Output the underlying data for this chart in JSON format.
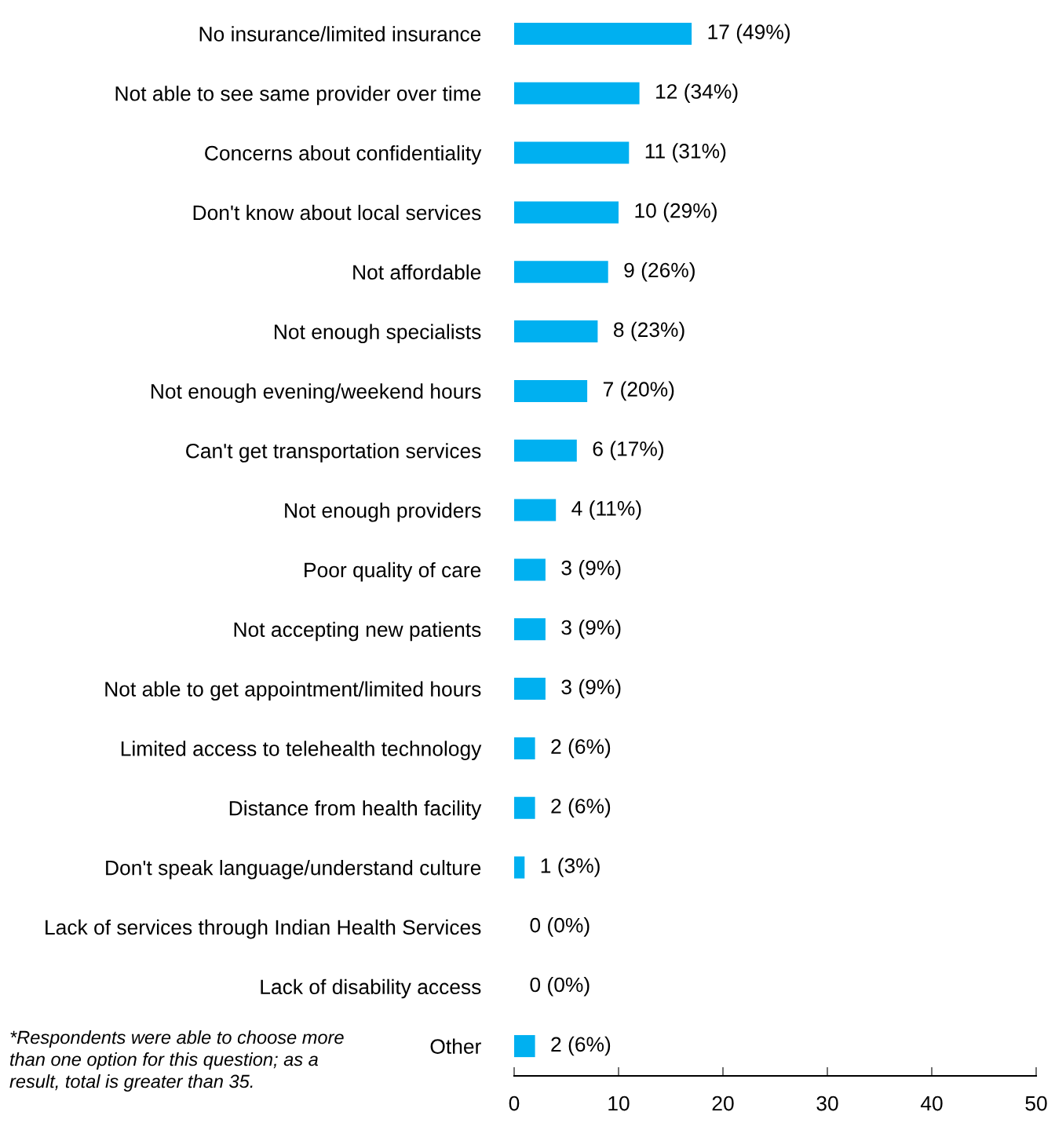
{
  "chart_data": {
    "type": "bar",
    "orientation": "horizontal",
    "categories": [
      "No insurance/limited insurance",
      "Not able to see same provider over time",
      "Concerns about confidentiality",
      "Don't know about local services",
      "Not affordable",
      "Not enough specialists",
      "Not enough evening/weekend hours",
      "Can't get transportation services",
      "Not enough providers",
      "Poor quality of care",
      "Not accepting new patients",
      "Not able to get appointment/limited hours",
      "Limited access to telehealth technology",
      "Distance from health facility",
      "Don't speak language/understand culture",
      "Lack of services through Indian Health Services",
      "Lack of disability access",
      "Other"
    ],
    "values": [
      17,
      12,
      11,
      10,
      9,
      8,
      7,
      6,
      4,
      3,
      3,
      3,
      2,
      2,
      1,
      0,
      0,
      2
    ],
    "value_labels": [
      "17 (49%)",
      "12 (34%)",
      "11 (31%)",
      "10 (29%)",
      "9 (26%)",
      "8 (23%)",
      "7 (20%)",
      "6 (17%)",
      "4 (11%)",
      "3 (9%)",
      "3 (9%)",
      "3 (9%)",
      "2 (6%)",
      "2 (6%)",
      "1 (3%)",
      "0 (0%)",
      "0 (0%)",
      "2 (6%)"
    ],
    "color": "#00b0f0",
    "xlim": [
      0,
      50
    ],
    "xticks": [
      0,
      10,
      20,
      30,
      40,
      50
    ],
    "grid": false,
    "annotations": [
      "*Respondents were able to choose more than one option for this question; as a result, total is greater than 35."
    ]
  }
}
